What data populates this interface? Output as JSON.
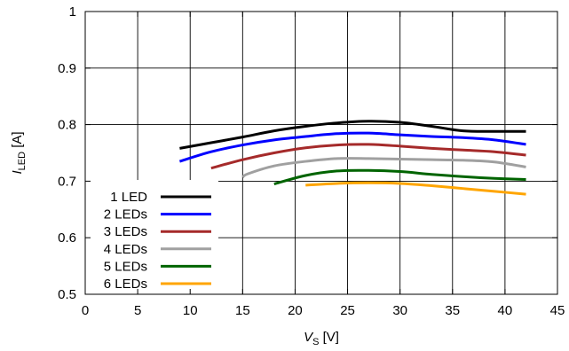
{
  "chart_data": {
    "type": "line",
    "xlabel": {
      "var": "V",
      "sub": "S",
      "unit": "[V]"
    },
    "ylabel": {
      "var": "I",
      "sub": "LED",
      "unit": "[A]"
    },
    "xlim": [
      0,
      45
    ],
    "ylim": [
      0.5,
      1
    ],
    "x_ticks": [
      "0",
      "5",
      "10",
      "15",
      "20",
      "25",
      "30",
      "35",
      "40",
      "45"
    ],
    "y_ticks": [
      "0.5",
      "0.6",
      "0.7",
      "0.8",
      "0.9",
      "1"
    ],
    "grid": true,
    "legend_position": "lower-left",
    "series": [
      {
        "name": "1 LED",
        "color": "#000000",
        "x": [
          9,
          12,
          15,
          18,
          21,
          24,
          27,
          30,
          33,
          36,
          39,
          42
        ],
        "y": [
          0.758,
          0.768,
          0.778,
          0.789,
          0.797,
          0.803,
          0.806,
          0.804,
          0.797,
          0.789,
          0.788,
          0.788
        ]
      },
      {
        "name": "2 LEDs",
        "color": "#0000ff",
        "x": [
          9,
          12,
          15,
          18,
          21,
          24,
          27,
          30,
          33,
          36,
          39,
          42
        ],
        "y": [
          0.735,
          0.752,
          0.764,
          0.773,
          0.779,
          0.784,
          0.785,
          0.782,
          0.779,
          0.777,
          0.773,
          0.765
        ]
      },
      {
        "name": "3 LEDs",
        "color": "#a52a2a",
        "x": [
          12,
          15,
          18,
          21,
          24,
          27,
          30,
          33,
          36,
          39,
          42
        ],
        "y": [
          0.723,
          0.738,
          0.75,
          0.759,
          0.764,
          0.765,
          0.762,
          0.758,
          0.755,
          0.752,
          0.746
        ]
      },
      {
        "name": "4 LEDs",
        "color": "#a0a0a0",
        "x": [
          15,
          15.5,
          18,
          21,
          24,
          27,
          30,
          33,
          36,
          39,
          42
        ],
        "y": [
          0.707,
          0.713,
          0.727,
          0.735,
          0.74,
          0.74,
          0.739,
          0.738,
          0.737,
          0.734,
          0.725
        ]
      },
      {
        "name": "5 LEDs",
        "color": "#006400",
        "x": [
          18,
          21,
          24,
          27,
          30,
          33,
          36,
          39,
          42
        ],
        "y": [
          0.695,
          0.71,
          0.718,
          0.719,
          0.717,
          0.712,
          0.708,
          0.705,
          0.703
        ]
      },
      {
        "name": "6 LEDs",
        "color": "#ffa500",
        "x": [
          21,
          24,
          27,
          30,
          33,
          36,
          39,
          42
        ],
        "y": [
          0.693,
          0.696,
          0.697,
          0.696,
          0.692,
          0.687,
          0.682,
          0.677
        ]
      }
    ]
  }
}
